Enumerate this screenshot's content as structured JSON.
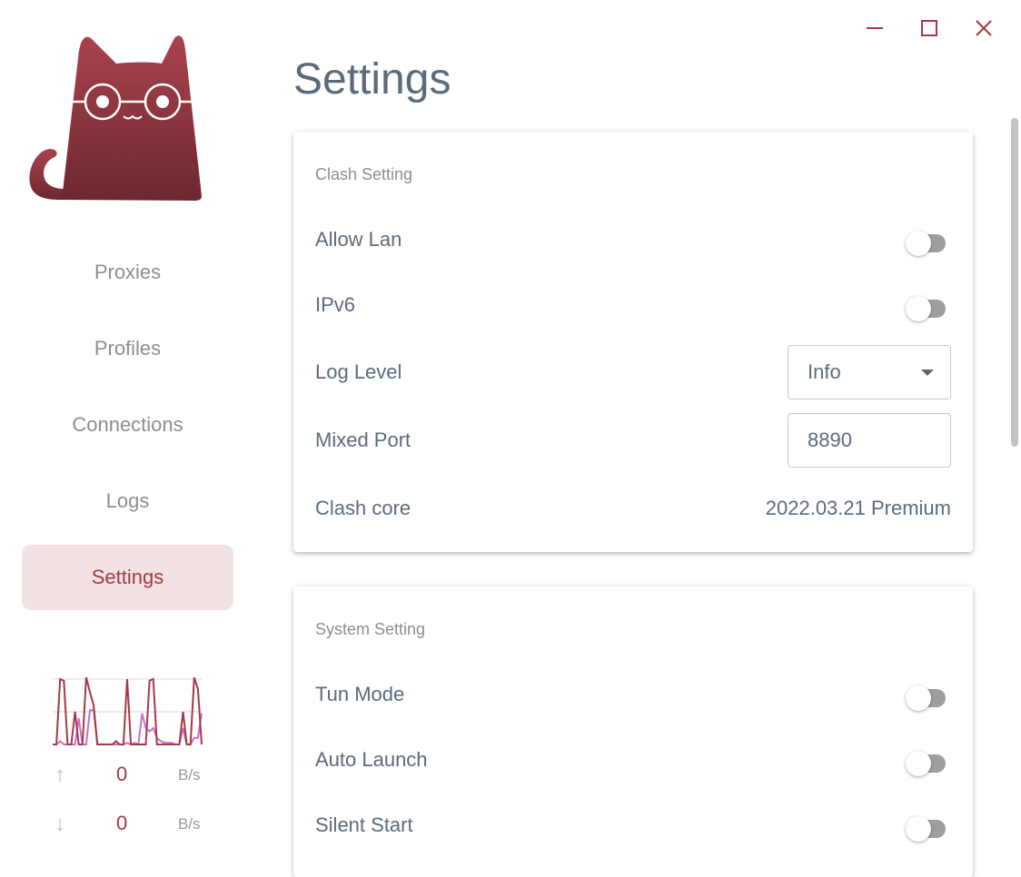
{
  "window": {
    "controls": [
      "minimize",
      "maximize",
      "close"
    ],
    "accent": "#a43a45"
  },
  "sidebar": {
    "items": [
      {
        "label": "Proxies",
        "active": false
      },
      {
        "label": "Profiles",
        "active": false
      },
      {
        "label": "Connections",
        "active": false
      },
      {
        "label": "Logs",
        "active": false
      },
      {
        "label": "Settings",
        "active": true
      }
    ],
    "traffic": {
      "upload": {
        "value": "0",
        "unit": "B/s"
      },
      "download": {
        "value": "0",
        "unit": "B/s"
      },
      "up_series": [
        0,
        0,
        2,
        1.95,
        0,
        0,
        1,
        0,
        0,
        2.05,
        1.6,
        1.2,
        0,
        0,
        0,
        0,
        0,
        0.1,
        0,
        0,
        2,
        0,
        0,
        0,
        0,
        0,
        1.95,
        2,
        0,
        0,
        0,
        0,
        0,
        0,
        0,
        1,
        0,
        0,
        2.05,
        1.7,
        0
      ],
      "down_series": [
        0,
        0,
        0.1,
        0,
        0,
        0,
        0,
        0.8,
        0,
        0,
        1.05,
        1.05,
        0,
        0,
        0,
        0,
        0,
        0,
        0,
        0,
        0.05,
        0,
        0.05,
        0,
        0.95,
        0.5,
        0.4,
        0.5,
        0.2,
        0.1,
        0.05,
        0.05,
        0.05,
        0,
        0,
        0.5,
        0,
        0,
        0.2,
        0.2,
        0.95
      ]
    }
  },
  "page": {
    "title": "Settings"
  },
  "clash_setting": {
    "title": "Clash Setting",
    "allow_lan": {
      "label": "Allow Lan",
      "on": false
    },
    "ipv6": {
      "label": "IPv6",
      "on": false
    },
    "log_level": {
      "label": "Log Level",
      "value": "Info"
    },
    "mixed_port": {
      "label": "Mixed Port",
      "value": "8890"
    },
    "clash_core": {
      "label": "Clash core",
      "value": "2022.03.21 Premium"
    }
  },
  "system_setting": {
    "title": "System Setting",
    "tun_mode": {
      "label": "Tun Mode",
      "on": false
    },
    "auto_launch": {
      "label": "Auto Launch",
      "on": false
    },
    "silent_start": {
      "label": "Silent Start",
      "on": false
    }
  }
}
